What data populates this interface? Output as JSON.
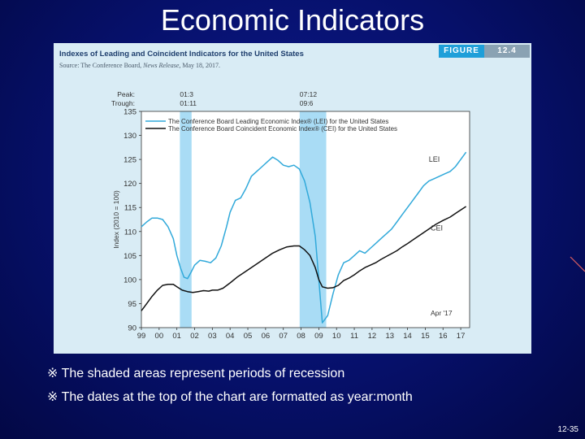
{
  "slide": {
    "title": "Economic Indicators",
    "page_number": "12-35",
    "notes": [
      "※ The shaded areas represent periods of recession",
      "※ The dates at the top of the chart are formatted as year:month"
    ]
  },
  "figure": {
    "title": "Indexes of Leading and Coincident Indicators for the United States",
    "source_prefix": "Source: The Conference Board,",
    "source_publication": "News Release,",
    "source_date": "May 18, 2017.",
    "badge_label": "FIGURE",
    "badge_number": "12.4"
  },
  "colors": {
    "lei": "#31a9da",
    "cei": "#111111",
    "recession": "#a9dcf5",
    "plot_bg": "#ffffff",
    "panel_bg": "#d9ecf5"
  },
  "chart_data": {
    "type": "line",
    "xlabel": "",
    "ylabel": "Index (2010 = 100)",
    "xlim": [
      1999,
      2017.5
    ],
    "ylim": [
      90,
      135
    ],
    "yticks": [
      90,
      95,
      100,
      105,
      110,
      115,
      120,
      125,
      130,
      135
    ],
    "xticks": [
      {
        "value": 1999,
        "label": "99"
      },
      {
        "value": 2000,
        "label": "00"
      },
      {
        "value": 2001,
        "label": "01"
      },
      {
        "value": 2002,
        "label": "02"
      },
      {
        "value": 2003,
        "label": "03"
      },
      {
        "value": 2004,
        "label": "04"
      },
      {
        "value": 2005,
        "label": "05"
      },
      {
        "value": 2006,
        "label": "06"
      },
      {
        "value": 2007,
        "label": "07"
      },
      {
        "value": 2008,
        "label": "08"
      },
      {
        "value": 2009,
        "label": "09"
      },
      {
        "value": 2010,
        "label": "10"
      },
      {
        "value": 2011,
        "label": "11"
      },
      {
        "value": 2012,
        "label": "12"
      },
      {
        "value": 2013,
        "label": "13"
      },
      {
        "value": 2014,
        "label": "14"
      },
      {
        "value": 2015,
        "label": "15"
      },
      {
        "value": 2016,
        "label": "16"
      },
      {
        "value": 2017,
        "label": "17"
      }
    ],
    "recessions": [
      {
        "start": 2001.17,
        "end": 2001.83,
        "peak": "01:3",
        "trough": "01:11"
      },
      {
        "start": 2007.92,
        "end": 2009.42,
        "peak": "07:12",
        "trough": "09:6"
      }
    ],
    "peak_label": "Peak:",
    "trough_label": "Trough:",
    "legend": [
      "The Conference Board Leading Economic Index® (LEI) for the United States",
      "The Conference Board Coincident Economic Index® (CEI) for the United States"
    ],
    "annotations": {
      "lei": "LEI",
      "cei": "CEI",
      "end_date": "Apr '17"
    },
    "series": [
      {
        "name": "LEI",
        "x": [
          1999.0,
          1999.3,
          1999.6,
          1999.9,
          2000.2,
          2000.5,
          2000.8,
          2001.0,
          2001.2,
          2001.4,
          2001.6,
          2001.8,
          2002.0,
          2002.3,
          2002.6,
          2002.9,
          2003.2,
          2003.5,
          2003.8,
          2004.0,
          2004.3,
          2004.6,
          2004.9,
          2005.2,
          2005.5,
          2005.8,
          2006.1,
          2006.4,
          2006.7,
          2007.0,
          2007.3,
          2007.6,
          2007.9,
          2008.2,
          2008.5,
          2008.8,
          2009.0,
          2009.2,
          2009.5,
          2009.8,
          2010.1,
          2010.4,
          2010.7,
          2011.0,
          2011.3,
          2011.6,
          2011.9,
          2012.2,
          2012.5,
          2012.8,
          2013.1,
          2013.4,
          2013.7,
          2014.0,
          2014.3,
          2014.6,
          2014.9,
          2015.2,
          2015.5,
          2015.8,
          2016.1,
          2016.4,
          2016.7,
          2017.0,
          2017.3
        ],
        "values": [
          111.0,
          112.0,
          112.8,
          112.8,
          112.5,
          111.0,
          108.5,
          105.0,
          102.5,
          100.5,
          100.2,
          101.5,
          103.0,
          104.0,
          103.8,
          103.5,
          104.5,
          107.0,
          111.0,
          114.0,
          116.5,
          117.0,
          119.0,
          121.5,
          122.5,
          123.5,
          124.5,
          125.5,
          124.8,
          123.8,
          123.5,
          123.8,
          123.0,
          120.5,
          116.0,
          109.0,
          100.0,
          91.0,
          92.5,
          97.0,
          101.0,
          103.5,
          104.0,
          105.0,
          106.0,
          105.5,
          106.5,
          107.5,
          108.5,
          109.5,
          110.5,
          112.0,
          113.5,
          115.0,
          116.5,
          118.0,
          119.5,
          120.5,
          121.0,
          121.5,
          122.0,
          122.5,
          123.5,
          125.0,
          126.5
        ]
      },
      {
        "name": "CEI",
        "x": [
          1999.0,
          1999.3,
          1999.6,
          1999.9,
          2000.2,
          2000.5,
          2000.8,
          2001.0,
          2001.3,
          2001.6,
          2001.9,
          2002.2,
          2002.5,
          2002.8,
          2003.0,
          2003.3,
          2003.6,
          2004.0,
          2004.4,
          2004.8,
          2005.2,
          2005.6,
          2006.0,
          2006.4,
          2006.8,
          2007.2,
          2007.6,
          2007.9,
          2008.2,
          2008.5,
          2008.8,
          2009.0,
          2009.2,
          2009.5,
          2009.8,
          2010.1,
          2010.4,
          2010.7,
          2011.0,
          2011.3,
          2011.6,
          2011.9,
          2012.2,
          2012.5,
          2012.8,
          2013.1,
          2013.4,
          2013.7,
          2014.0,
          2014.4,
          2014.8,
          2015.2,
          2015.6,
          2016.0,
          2016.4,
          2016.8,
          2017.0,
          2017.3
        ],
        "values": [
          93.5,
          95.0,
          96.5,
          97.8,
          98.8,
          99.0,
          99.0,
          98.5,
          97.8,
          97.5,
          97.3,
          97.5,
          97.7,
          97.6,
          97.8,
          97.8,
          98.2,
          99.3,
          100.5,
          101.5,
          102.5,
          103.5,
          104.5,
          105.5,
          106.2,
          106.8,
          107.0,
          107.0,
          106.2,
          105.0,
          102.5,
          100.0,
          98.5,
          98.2,
          98.3,
          98.8,
          99.8,
          100.3,
          101.0,
          101.8,
          102.5,
          103.0,
          103.5,
          104.2,
          104.8,
          105.4,
          106.0,
          106.8,
          107.5,
          108.5,
          109.5,
          110.5,
          111.5,
          112.3,
          113.0,
          114.0,
          114.5,
          115.2
        ]
      }
    ]
  }
}
